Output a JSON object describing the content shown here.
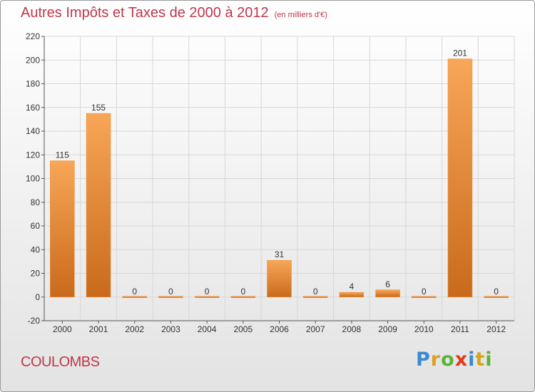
{
  "title": "Autres Impôts et Taxes de 2000 à 2012",
  "subtitle": "(en milliers d'€)",
  "commune": "COULOMBS",
  "logo": {
    "text": "Proxiti",
    "icon": "proxiti-logo"
  },
  "colors": {
    "title": "#c0364a",
    "bar_light": "#f8a657",
    "bar_dark": "#c96a1b",
    "grid": "#d7d7d7",
    "axis": "#555555"
  },
  "chart_data": {
    "type": "bar",
    "categories": [
      "2000",
      "2001",
      "2002",
      "2003",
      "2004",
      "2005",
      "2006",
      "2007",
      "2008",
      "2009",
      "2010",
      "2011",
      "2012"
    ],
    "values": [
      115,
      155,
      0,
      0,
      0,
      0,
      31,
      0,
      4,
      6,
      0,
      201,
      0
    ],
    "data_labels": [
      "115",
      "155",
      "0",
      "0",
      "0",
      "0",
      "31",
      "0",
      "4",
      "6",
      "0",
      "201",
      "0"
    ],
    "ylim": [
      -20,
      220
    ],
    "yticks": [
      -20,
      0,
      20,
      40,
      60,
      80,
      100,
      120,
      140,
      160,
      180,
      200,
      220
    ],
    "grid": true,
    "xlabel": "",
    "ylabel": ""
  }
}
